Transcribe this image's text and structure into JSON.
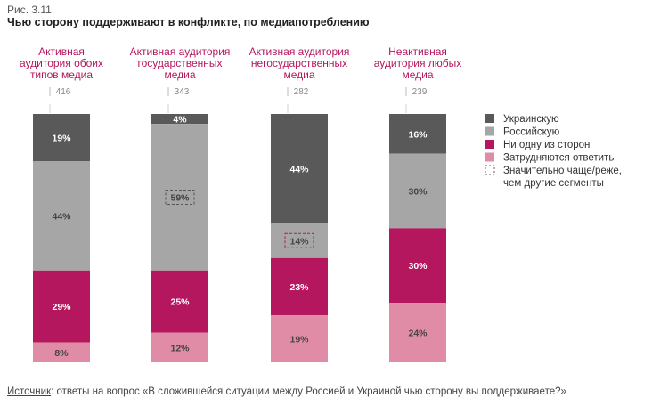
{
  "figure_label": "Рис. 3.11.",
  "title": "Чью сторону поддерживают в конфликте, по медиапотреблению",
  "source": {
    "label": "Источник",
    "text": ": ответы на вопрос «В сложившейся ситуации между Россией и Украиной чью сторону вы поддерживаете?»"
  },
  "colors": {
    "ukrainian": "#595959",
    "russian": "#a6a6a6",
    "neither": "#b5175e",
    "undecided": "#e18ca6",
    "category_text": "#b5175e"
  },
  "chart_data": {
    "type": "bar",
    "stacked": true,
    "orientation": "vertical",
    "unit": "%",
    "categories": [
      {
        "lines": [
          "Активная",
          "аудитория обоих",
          "типов медиа"
        ],
        "n": "416"
      },
      {
        "lines": [
          "Активная аудитория",
          "государственных",
          "медиа"
        ],
        "n": "343"
      },
      {
        "lines": [
          "Активная аудитория",
          "негосударственных",
          "медиа"
        ],
        "n": "282"
      },
      {
        "lines": [
          "Неактивная",
          "аудитория любых",
          "медиа"
        ],
        "n": "239"
      }
    ],
    "series": [
      {
        "key": "ukrainian",
        "name": "Украинскую",
        "values": [
          19,
          4,
          44,
          16
        ]
      },
      {
        "key": "russian",
        "name": "Российскую",
        "values": [
          44,
          59,
          14,
          30
        ]
      },
      {
        "key": "neither",
        "name": "Ни одну из сторон",
        "values": [
          29,
          25,
          23,
          30
        ]
      },
      {
        "key": "undecided",
        "name": "Затрудняются ответить",
        "values": [
          8,
          12,
          19,
          24
        ]
      }
    ],
    "highlighted": [
      {
        "category": 1,
        "series": "russian"
      },
      {
        "category": 2,
        "series": "russian"
      }
    ],
    "legend": {
      "position": "right",
      "extra_lines": [
        "Значительно чаще/реже,",
        "чем другие сегменты"
      ]
    }
  }
}
